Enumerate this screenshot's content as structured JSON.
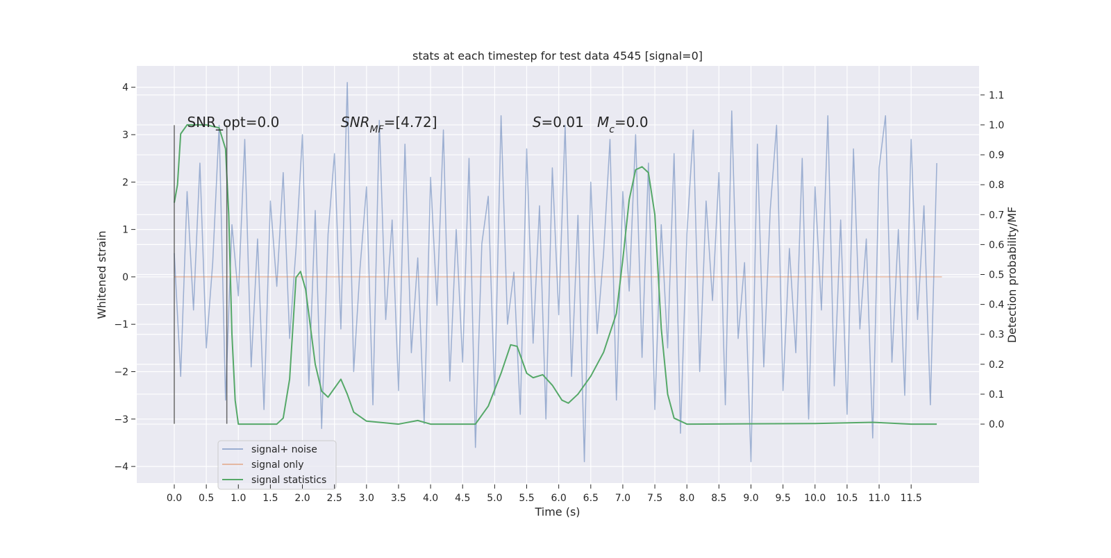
{
  "chart_data": {
    "type": "line",
    "title": "stats at each timestep for test data 4545 [signal=0]",
    "x_label": "Time (s)",
    "y_label": "Whitened strain",
    "y2_label": "Detection probability/MF",
    "xlim": [
      -0.585,
      12.56
    ],
    "ylim": [
      -4.35,
      4.45
    ],
    "y2lim": [
      -0.197,
      1.197
    ],
    "grid": true,
    "legend": "lower left",
    "xticks": [
      {
        "value": 0,
        "label": "0.0"
      },
      {
        "value": 0.5,
        "label": "0.5"
      },
      {
        "value": 1,
        "label": "1.0"
      },
      {
        "value": 1.5,
        "label": "1.5"
      },
      {
        "value": 2,
        "label": "2.0"
      },
      {
        "value": 2.5,
        "label": "2.5"
      },
      {
        "value": 3,
        "label": "3.0"
      },
      {
        "value": 3.5,
        "label": "3.5"
      },
      {
        "value": 4,
        "label": "4.0"
      },
      {
        "value": 4.5,
        "label": "4.5"
      },
      {
        "value": 5,
        "label": "5.0"
      },
      {
        "value": 5.5,
        "label": "5.5"
      },
      {
        "value": 6,
        "label": "6.0"
      },
      {
        "value": 6.5,
        "label": "6.5"
      },
      {
        "value": 7,
        "label": "7.0"
      },
      {
        "value": 7.5,
        "label": "7.5"
      },
      {
        "value": 8,
        "label": "8.0"
      },
      {
        "value": 8.5,
        "label": "8.5"
      },
      {
        "value": 9,
        "label": "9.0"
      },
      {
        "value": 9.5,
        "label": "9.5"
      },
      {
        "value": 10,
        "label": "10.0"
      },
      {
        "value": 10.5,
        "label": "10.5"
      },
      {
        "value": 11,
        "label": "11.0"
      },
      {
        "value": 11.5,
        "label": "11.5"
      }
    ],
    "yticks": [
      {
        "value": -4,
        "label": "−4"
      },
      {
        "value": -3,
        "label": "−3"
      },
      {
        "value": -2,
        "label": "−2"
      },
      {
        "value": -1,
        "label": "−1"
      },
      0,
      1,
      2,
      3,
      4
    ],
    "y2ticks": [
      {
        "value": 0,
        "label": "0.0"
      },
      {
        "value": 0.1,
        "label": "0.1"
      },
      {
        "value": 0.2,
        "label": "0.2"
      },
      {
        "value": 0.3,
        "label": "0.3"
      },
      {
        "value": 0.4,
        "label": "0.4"
      },
      {
        "value": 0.5,
        "label": "0.5"
      },
      {
        "value": 0.6,
        "label": "0.6"
      },
      {
        "value": 0.7,
        "label": "0.7"
      },
      {
        "value": 0.8,
        "label": "0.8"
      },
      {
        "value": 0.9,
        "label": "0.9"
      },
      {
        "value": 1.0,
        "label": "1.0"
      },
      {
        "value": 1.1,
        "label": "1.1"
      }
    ],
    "series": [
      {
        "name": "signal+ noise",
        "color": "#4c72b0",
        "opacity": 0.5,
        "x": [
          0,
          0.1,
          0.2,
          0.3,
          0.4,
          0.5,
          0.6,
          0.7,
          0.8,
          0.9,
          1,
          1.1,
          1.2,
          1.3,
          1.4,
          1.5,
          1.6,
          1.7,
          1.8,
          1.9,
          2,
          2.1,
          2.2,
          2.3,
          2.4,
          2.5,
          2.6,
          2.7,
          2.8,
          2.9,
          3,
          3.1,
          3.2,
          3.3,
          3.4,
          3.5,
          3.6,
          3.7,
          3.8,
          3.9,
          4,
          4.1,
          4.2,
          4.3,
          4.4,
          4.5,
          4.6,
          4.7,
          4.8,
          4.9,
          5,
          5.1,
          5.2,
          5.3,
          5.4,
          5.5,
          5.6,
          5.7,
          5.8,
          5.9,
          6,
          6.1,
          6.2,
          6.3,
          6.4,
          6.5,
          6.6,
          6.7,
          6.8,
          6.9,
          7,
          7.1,
          7.2,
          7.3,
          7.4,
          7.5,
          7.6,
          7.7,
          7.8,
          7.9,
          8,
          8.1,
          8.2,
          8.3,
          8.4,
          8.5,
          8.6,
          8.7,
          8.8,
          8.9,
          9,
          9.1,
          9.2,
          9.3,
          9.4,
          9.5,
          9.6,
          9.7,
          9.8,
          9.9,
          10,
          10.1,
          10.2,
          10.3,
          10.4,
          10.5,
          10.6,
          10.7,
          10.8,
          10.9,
          11,
          11.1,
          11.2,
          11.3,
          11.4,
          11.5,
          11.6,
          11.7,
          11.8,
          11.9
        ],
        "values": [
          0.5,
          -2.1,
          1.8,
          -0.7,
          2.4,
          -1.5,
          0.3,
          3.2,
          -2.6,
          1.1,
          -0.4,
          2.9,
          -1.9,
          0.8,
          -2.8,
          1.6,
          -0.2,
          2.2,
          -1.3,
          0.6,
          3.0,
          -2.3,
          1.4,
          -3.2,
          0.9,
          2.6,
          -1.1,
          4.1,
          -2.0,
          0.2,
          1.9,
          -2.7,
          3.3,
          -0.9,
          1.2,
          -2.4,
          2.8,
          -1.6,
          0.4,
          -3.1,
          2.1,
          -0.6,
          3.1,
          -2.2,
          1.0,
          -1.8,
          2.5,
          -3.6,
          0.7,
          1.7,
          -2.5,
          3.4,
          -1.0,
          0.1,
          -2.9,
          2.7,
          -1.4,
          1.5,
          -3.0,
          2.3,
          -0.8,
          3.2,
          -2.1,
          1.3,
          -3.9,
          2.0,
          -1.2,
          0.5,
          2.9,
          -2.6,
          1.8,
          -0.3,
          3.0,
          -1.7,
          2.4,
          -2.8,
          1.1,
          -1.5,
          2.6,
          -3.3,
          0.9,
          3.1,
          -2.0,
          1.6,
          -0.5,
          2.2,
          -2.7,
          3.5,
          -1.3,
          0.3,
          -3.9,
          2.8,
          -1.9,
          1.4,
          3.2,
          -2.4,
          0.6,
          -1.6,
          2.5,
          -3.0,
          1.9,
          -0.7,
          3.4,
          -2.3,
          1.2,
          -2.9,
          2.7,
          -1.1,
          0.8,
          -3.4,
          2.3,
          3.4,
          -1.8,
          1.0,
          -2.5,
          2.9,
          -0.9,
          1.5,
          -2.7,
          2.4
        ]
      },
      {
        "name": "signal only",
        "color": "#dd8452",
        "opacity": 0.5,
        "x": [
          0,
          11.98
        ],
        "values": [
          0,
          0
        ]
      },
      {
        "name": "signal statistics",
        "color": "#55a868",
        "opacity": 1,
        "axis": "y2",
        "x": [
          0,
          0.05,
          0.1,
          0.2,
          0.3,
          0.5,
          0.7,
          0.8,
          0.85,
          0.9,
          0.95,
          1.0,
          1.2,
          1.6,
          1.7,
          1.8,
          1.9,
          1.97,
          2.05,
          2.2,
          2.3,
          2.4,
          2.5,
          2.6,
          2.7,
          2.8,
          3.0,
          3.5,
          3.8,
          4.0,
          4.7,
          4.9,
          5.1,
          5.25,
          5.35,
          5.5,
          5.6,
          5.75,
          5.9,
          6.05,
          6.15,
          6.3,
          6.5,
          6.7,
          6.9,
          7.0,
          7.1,
          7.2,
          7.3,
          7.4,
          7.5,
          7.6,
          7.7,
          7.8,
          8.0,
          9.0,
          10.0,
          10.9,
          11.5,
          11.9
        ],
        "values": [
          0.74,
          0.8,
          0.97,
          1.0,
          1.0,
          1.0,
          0.99,
          0.92,
          0.7,
          0.3,
          0.08,
          0.0,
          0.0,
          0.0,
          0.02,
          0.15,
          0.49,
          0.51,
          0.45,
          0.2,
          0.11,
          0.09,
          0.12,
          0.15,
          0.1,
          0.04,
          0.01,
          0.0,
          0.012,
          0.0,
          0.0,
          0.06,
          0.17,
          0.265,
          0.26,
          0.17,
          0.155,
          0.165,
          0.13,
          0.08,
          0.07,
          0.1,
          0.16,
          0.24,
          0.37,
          0.55,
          0.75,
          0.85,
          0.86,
          0.84,
          0.7,
          0.32,
          0.1,
          0.02,
          0.0,
          0.001,
          0.002,
          0.006,
          0.0,
          0.0
        ]
      }
    ],
    "vlines": [
      {
        "x": 0,
        "ymin": -3.1,
        "ymax": 3.2,
        "color": "#444444"
      },
      {
        "x": 0.82,
        "ymin": -3.1,
        "ymax": 3.2,
        "color": "#444444"
      }
    ],
    "annotations": [
      {
        "x": 0.2,
        "y": 3.16,
        "parts": [
          {
            "text": "SNR_opt=0.0"
          }
        ]
      },
      {
        "x": 2.6,
        "y": 3.16,
        "parts": [
          {
            "text": "SNR",
            "style": "italic"
          },
          {
            "text": "MF",
            "style": "italic-sub"
          },
          {
            "text": "=[4.72]"
          }
        ]
      },
      {
        "x": 5.59,
        "y": 3.16,
        "parts": [
          {
            "text": "S",
            "style": "italic"
          },
          {
            "text": "=0.01"
          }
        ]
      },
      {
        "x": 6.6,
        "y": 3.16,
        "parts": [
          {
            "text": "M",
            "style": "italic"
          },
          {
            "text": "c",
            "style": "italic-sub"
          },
          {
            "text": "=0.0"
          }
        ]
      }
    ]
  }
}
